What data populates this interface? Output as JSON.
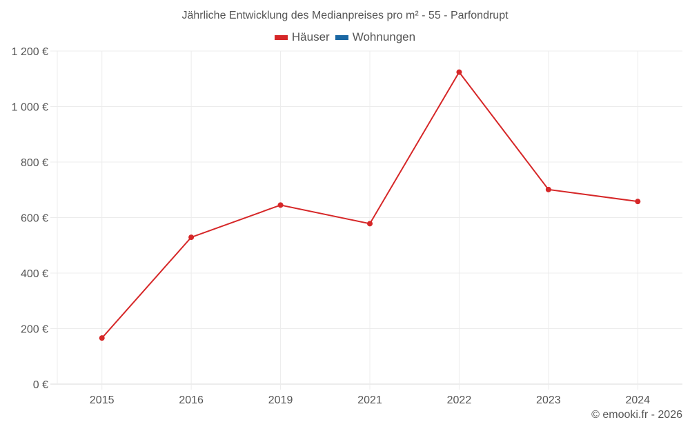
{
  "title": "Jährliche Entwicklung des Medianpreises pro m² - 55 - Parfondrupt",
  "legend": [
    {
      "label": "Häuser",
      "color": "#d62728"
    },
    {
      "label": "Wohnungen",
      "color": "#1a67a3"
    }
  ],
  "credit": "© emooki.fr - 2026",
  "chart_data": {
    "type": "line",
    "title": "Jährliche Entwicklung des Medianpreises pro m² - 55 - Parfondrupt",
    "xlabel": "",
    "ylabel": "",
    "categories": [
      "2015",
      "2016",
      "2019",
      "2021",
      "2022",
      "2023",
      "2024"
    ],
    "series": [
      {
        "name": "Häuser",
        "color": "#d62728",
        "values": [
          166,
          529,
          645,
          578,
          1124,
          701,
          658
        ]
      },
      {
        "name": "Wohnungen",
        "color": "#1a67a3",
        "values": []
      }
    ],
    "ylim": [
      0,
      1200
    ],
    "yticks": [
      0,
      200,
      400,
      600,
      800,
      1000,
      1200
    ],
    "ytick_labels": [
      "0 €",
      "200 €",
      "400 €",
      "600 €",
      "800 €",
      "1 000 €",
      "1 200 €"
    ],
    "grid": true,
    "legend_position": "top"
  }
}
